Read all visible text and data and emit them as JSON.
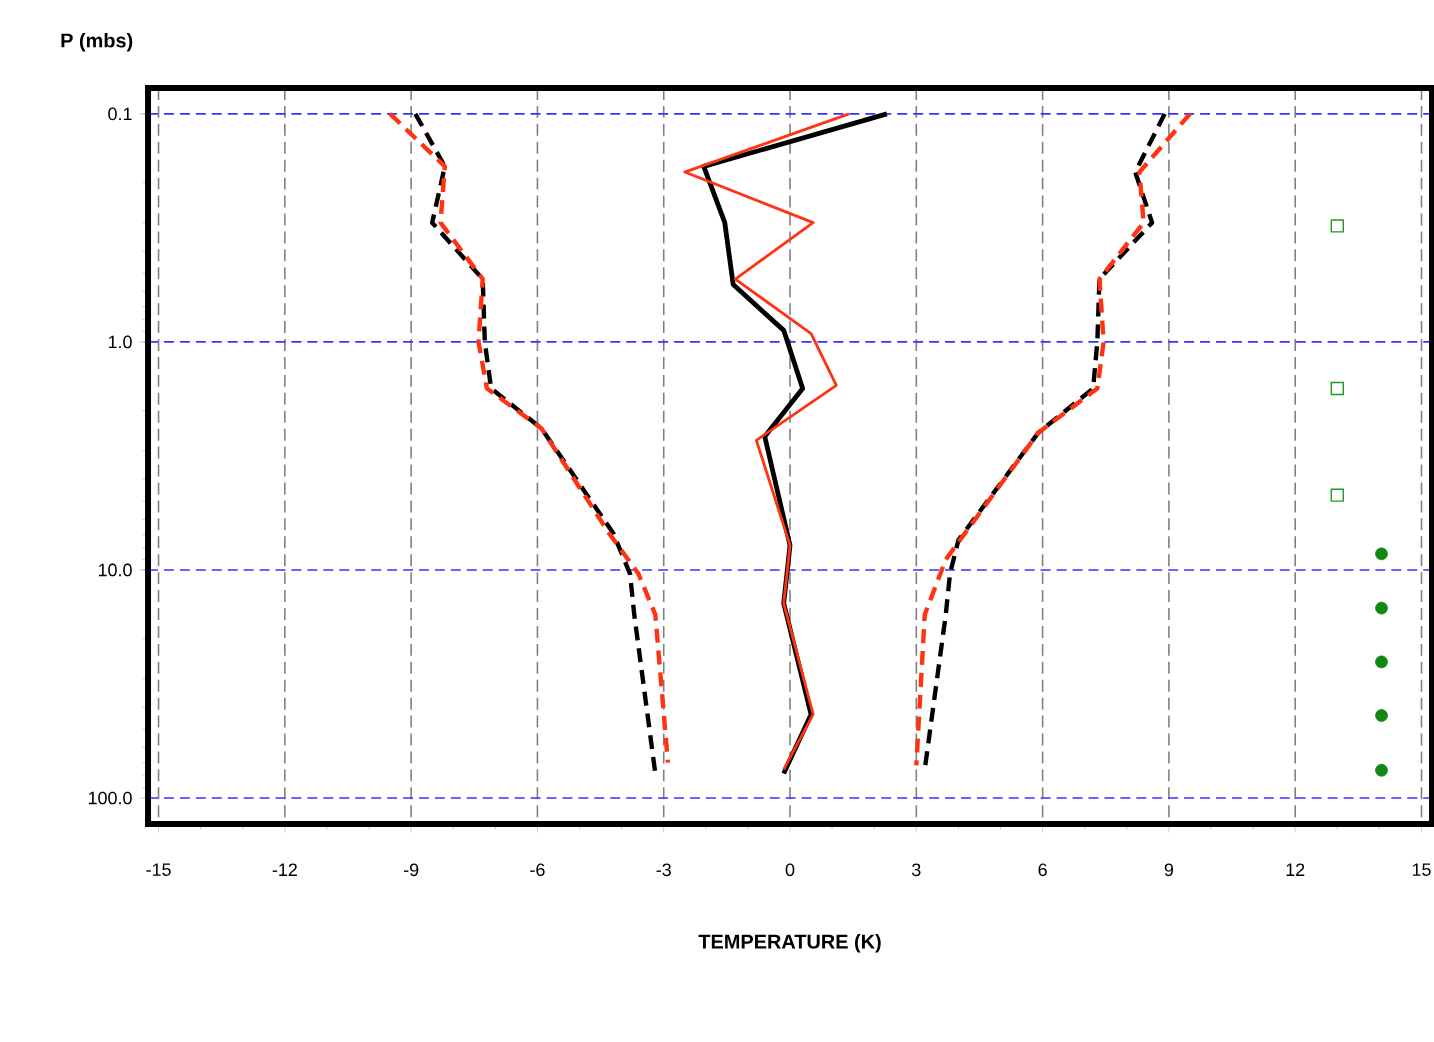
{
  "chart_data": {
    "type": "line",
    "xlabel": "TEMPERATURE (K)",
    "ylabel": "P (mbs)",
    "xlim": [
      -15.25,
      15.25
    ],
    "ylim": [
      130,
      0.077
    ],
    "log": "y",
    "grid": true,
    "xticks": [
      -15,
      -12,
      -9,
      -6,
      -3,
      0,
      3,
      6,
      9,
      12,
      15
    ],
    "yticks": [
      {
        "value": 0.1,
        "label": "0.1"
      },
      {
        "value": 1,
        "label": "1.0"
      },
      {
        "value": 10,
        "label": "10.0"
      },
      {
        "value": 100,
        "label": "100.0"
      }
    ],
    "series": [
      {
        "color": "#000000",
        "line_style": "dashed",
        "marker": "none",
        "x": [
          -8.9,
          -8.2,
          -8.5,
          -7.3,
          -7.25,
          -7.1,
          -5.9,
          -4.2,
          -3.8,
          -3.7,
          -3.2
        ],
        "values": [
          0.1,
          0.17,
          0.3,
          0.53,
          1.0,
          1.6,
          2.4,
          6.9,
          10.4,
          15.7,
          78
        ]
      },
      {
        "color": "#ff3311",
        "line_style": "dashed",
        "marker": "none",
        "x": [
          -9.5,
          -8.2,
          -8.3,
          -7.3,
          -7.4,
          -7.2,
          -5.9,
          -4.3,
          -3.6,
          -3.2,
          -2.9
        ],
        "values": [
          0.1,
          0.17,
          0.3,
          0.53,
          1.0,
          1.6,
          2.4,
          6.9,
          10.4,
          15.7,
          70
        ]
      },
      {
        "color": "#000000",
        "line_style": "dashed",
        "marker": "none",
        "x": [
          8.9,
          8.2,
          8.6,
          7.35,
          7.3,
          7.2,
          5.9,
          4.0,
          3.8,
          3.7,
          3.2
        ],
        "values": [
          0.1,
          0.18,
          0.3,
          0.53,
          1.0,
          1.6,
          2.5,
          7.4,
          10.4,
          15.7,
          75
        ]
      },
      {
        "color": "#ff3311",
        "line_style": "dashed",
        "marker": "none",
        "x": [
          9.5,
          8.3,
          8.4,
          7.35,
          7.45,
          7.3,
          5.9,
          3.7,
          3.2,
          3.0
        ],
        "values": [
          0.1,
          0.18,
          0.3,
          0.53,
          1.0,
          1.6,
          2.5,
          9.0,
          15.7,
          72
        ]
      },
      {
        "color": "#000000",
        "line_style": "solid",
        "marker": "none",
        "x": [
          2.3,
          -2.05,
          -1.55,
          -1.35,
          -0.15,
          0.3,
          -0.6,
          0,
          -0.15,
          0.5,
          -0.15
        ],
        "values": [
          0.1,
          0.17,
          0.3,
          0.56,
          0.89,
          1.6,
          2.6,
          7.8,
          14,
          43,
          78
        ]
      },
      {
        "color": "#ff3311",
        "line_style": "solid",
        "marker": "none",
        "x": [
          1.4,
          -2.5,
          0.55,
          -1.3,
          0.5,
          1.1,
          -0.8,
          0,
          -0.15,
          0.55,
          -0.15
        ],
        "values": [
          0.1,
          0.18,
          0.3,
          0.53,
          0.92,
          1.55,
          2.7,
          7.8,
          14,
          43,
          75
        ]
      },
      {
        "type": "scatter",
        "color": "#229922",
        "marker": "square",
        "x": [
          13.0,
          13.0,
          13.0
        ],
        "values": [
          0.31,
          1.6,
          4.7
        ]
      },
      {
        "type": "scatter",
        "color": "#118811",
        "marker": "circle",
        "x": [
          14.05,
          14.05,
          14.05,
          14.05,
          14.05
        ],
        "values": [
          8.5,
          14.7,
          25.3,
          43.5,
          75.6
        ]
      }
    ]
  }
}
